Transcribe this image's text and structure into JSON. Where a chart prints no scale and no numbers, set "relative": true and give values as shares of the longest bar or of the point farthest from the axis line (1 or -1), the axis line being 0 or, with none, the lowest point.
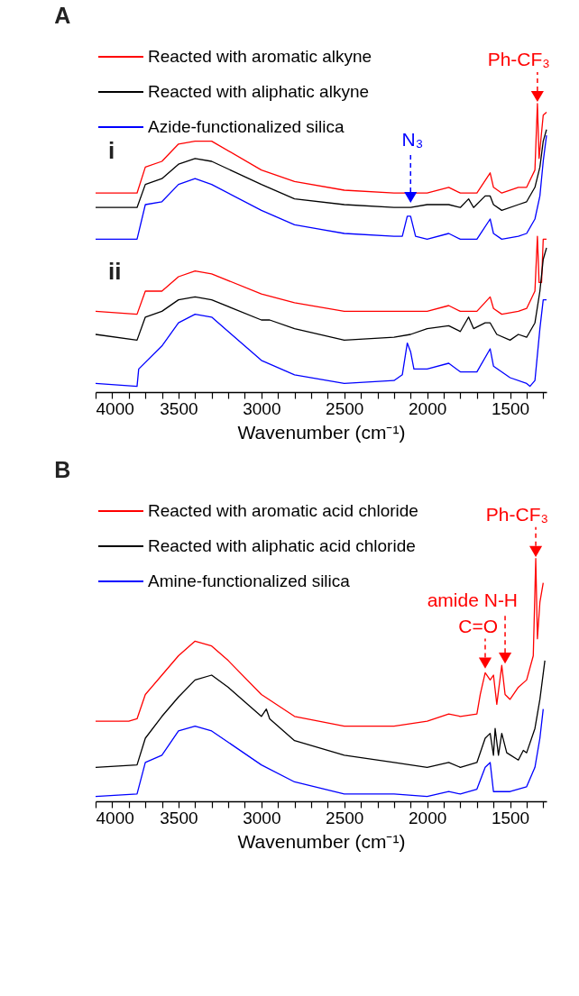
{
  "chart_data": [
    {
      "type": "line",
      "title": "A",
      "xlabel": "Wavenumber (cm⁻¹)",
      "relative": true,
      "legend": "top left",
      "xlim": [
        4000,
        1280
      ],
      "xticks": [
        4000,
        {
          "value": 3900,
          "label": null
        },
        {
          "value": 3800,
          "label": null
        },
        {
          "value": 3700,
          "label": null
        },
        {
          "value": 3600,
          "label": null
        },
        3500,
        {
          "value": 3400,
          "label": null
        },
        {
          "value": 3300,
          "label": null
        },
        {
          "value": 3200,
          "label": null
        },
        {
          "value": 3100,
          "label": null
        },
        3000,
        {
          "value": 2900,
          "label": null
        },
        {
          "value": 2800,
          "label": null
        },
        {
          "value": 2700,
          "label": null
        },
        {
          "value": 2600,
          "label": null
        },
        2500,
        {
          "value": 2400,
          "label": null
        },
        {
          "value": 2300,
          "label": null
        },
        {
          "value": 2200,
          "label": null
        },
        {
          "value": 2100,
          "label": null
        },
        2000,
        {
          "value": 1900,
          "label": null
        },
        {
          "value": 1800,
          "label": null
        },
        {
          "value": 1700,
          "label": null
        },
        {
          "value": 1600,
          "label": null
        },
        1500,
        {
          "value": 1400,
          "label": null
        },
        {
          "value": 1300,
          "label": null
        }
      ],
      "annotations": [
        "i",
        "ii",
        {
          "text": "Ph-CF₃",
          "x": 1335,
          "y": 1
        },
        {
          "text": "N₃",
          "x": 2100,
          "y": 0.65
        }
      ],
      "series": [
        {
          "name": "Reacted with aromatic alkyne",
          "color": "#ff0000",
          "x": [
            4000,
            3750,
            3700,
            3600,
            3500,
            3400,
            3300,
            3000,
            2800,
            2500,
            2200,
            2000,
            1870,
            1800,
            1700,
            1620,
            1600,
            1550,
            1450,
            1400,
            1350,
            1335,
            1325,
            1300,
            1280
          ],
          "values": [
            0.69,
            0.69,
            0.78,
            0.8,
            0.86,
            0.87,
            0.87,
            0.77,
            0.73,
            0.7,
            0.69,
            0.69,
            0.71,
            0.69,
            0.69,
            0.76,
            0.71,
            0.69,
            0.71,
            0.71,
            0.77,
            1,
            0.81,
            0.96,
            0.97
          ]
        },
        {
          "name": "Reacted with aliphatic alkyne",
          "color": "#000000",
          "x": [
            4000,
            3750,
            3700,
            3600,
            3500,
            3400,
            3300,
            3000,
            2800,
            2500,
            2200,
            2100,
            2000,
            1870,
            1800,
            1750,
            1720,
            1650,
            1620,
            1600,
            1550,
            1450,
            1400,
            1350,
            1320,
            1300,
            1280
          ],
          "values": [
            0.64,
            0.64,
            0.72,
            0.74,
            0.79,
            0.81,
            0.8,
            0.72,
            0.67,
            0.65,
            0.64,
            0.64,
            0.65,
            0.65,
            0.64,
            0.67,
            0.64,
            0.68,
            0.68,
            0.65,
            0.63,
            0.65,
            0.66,
            0.71,
            0.78,
            0.87,
            0.91
          ]
        },
        {
          "name": "Azide-functionalized silica",
          "color": "#0000ff",
          "x": [
            4000,
            3750,
            3700,
            3600,
            3500,
            3400,
            3300,
            3000,
            2800,
            2500,
            2200,
            2150,
            2120,
            2100,
            2070,
            2000,
            1870,
            1800,
            1700,
            1620,
            1600,
            1550,
            1450,
            1400,
            1350,
            1320,
            1300,
            1280
          ],
          "values": [
            0.53,
            0.53,
            0.65,
            0.66,
            0.72,
            0.74,
            0.72,
            0.63,
            0.58,
            0.55,
            0.54,
            0.54,
            0.61,
            0.61,
            0.54,
            0.53,
            0.55,
            0.53,
            0.53,
            0.6,
            0.55,
            0.53,
            0.54,
            0.55,
            0.6,
            0.68,
            0.8,
            0.89
          ]
        },
        {
          "color": "#ff0000",
          "x": [
            4000,
            3750,
            3700,
            3600,
            3500,
            3400,
            3300,
            3000,
            2800,
            2500,
            2200,
            2000,
            1870,
            1800,
            1700,
            1620,
            1600,
            1550,
            1450,
            1400,
            1350,
            1335,
            1325,
            1310,
            1300,
            1280
          ],
          "values": [
            0.28,
            0.27,
            0.35,
            0.35,
            0.4,
            0.42,
            0.41,
            0.34,
            0.31,
            0.28,
            0.28,
            0.28,
            0.3,
            0.28,
            0.28,
            0.33,
            0.29,
            0.27,
            0.28,
            0.29,
            0.35,
            0.54,
            0.38,
            0.38,
            0.53,
            0.53
          ]
        },
        {
          "color": "#000000",
          "x": [
            4000,
            3750,
            3700,
            3600,
            3500,
            3400,
            3300,
            3000,
            2950,
            2800,
            2500,
            2200,
            2100,
            2000,
            1870,
            1800,
            1750,
            1720,
            1650,
            1620,
            1580,
            1500,
            1450,
            1400,
            1350,
            1320,
            1300,
            1280
          ],
          "values": [
            0.2,
            0.18,
            0.26,
            0.28,
            0.32,
            0.33,
            0.32,
            0.25,
            0.25,
            0.22,
            0.18,
            0.19,
            0.2,
            0.22,
            0.23,
            0.21,
            0.26,
            0.22,
            0.24,
            0.24,
            0.2,
            0.18,
            0.2,
            0.19,
            0.24,
            0.35,
            0.46,
            0.5
          ]
        },
        {
          "color": "#0000ff",
          "x": [
            4000,
            3750,
            3740,
            3600,
            3500,
            3400,
            3300,
            3000,
            2800,
            2500,
            2200,
            2150,
            2120,
            2100,
            2080,
            2000,
            1870,
            1800,
            1700,
            1620,
            1600,
            1500,
            1400,
            1380,
            1350,
            1320,
            1300,
            1280
          ],
          "values": [
            0.03,
            0.02,
            0.08,
            0.16,
            0.24,
            0.27,
            0.26,
            0.11,
            0.06,
            0.03,
            0.04,
            0.06,
            0.17,
            0.14,
            0.08,
            0.08,
            0.1,
            0.07,
            0.07,
            0.15,
            0.09,
            0.05,
            0.03,
            0.02,
            0.04,
            0.22,
            0.32,
            0.32
          ]
        }
      ]
    },
    {
      "type": "line",
      "title": "B",
      "xlabel": "Wavenumber (cm⁻¹)",
      "relative": true,
      "legend": "top left",
      "xlim": [
        4000,
        1280
      ],
      "xticks": [
        4000,
        {
          "value": 3900,
          "label": null
        },
        {
          "value": 3800,
          "label": null
        },
        {
          "value": 3700,
          "label": null
        },
        {
          "value": 3600,
          "label": null
        },
        3500,
        {
          "value": 3400,
          "label": null
        },
        {
          "value": 3300,
          "label": null
        },
        {
          "value": 3200,
          "label": null
        },
        {
          "value": 3100,
          "label": null
        },
        3000,
        {
          "value": 2900,
          "label": null
        },
        {
          "value": 2800,
          "label": null
        },
        {
          "value": 2700,
          "label": null
        },
        {
          "value": 2600,
          "label": null
        },
        2500,
        {
          "value": 2400,
          "label": null
        },
        {
          "value": 2300,
          "label": null
        },
        {
          "value": 2200,
          "label": null
        },
        {
          "value": 2100,
          "label": null
        },
        2000,
        {
          "value": 1900,
          "label": null
        },
        {
          "value": 1800,
          "label": null
        },
        {
          "value": 1700,
          "label": null
        },
        {
          "value": 1600,
          "label": null
        },
        1500,
        {
          "value": 1400,
          "label": null
        },
        {
          "value": 1300,
          "label": null
        }
      ],
      "annotations": [
        {
          "text": "Ph-CF₃",
          "x": 1345,
          "y": 1
        },
        {
          "text": "amide N-H",
          "x": 1530,
          "y": 0.56
        },
        {
          "text": "C=O",
          "x": 1650,
          "y": 0.54
        }
      ],
      "series": [
        {
          "name": "Reacted with aromatic acid chloride",
          "color": "#ff0000",
          "x": [
            4000,
            3800,
            3750,
            3700,
            3600,
            3500,
            3400,
            3300,
            3200,
            3000,
            2800,
            2500,
            2200,
            2000,
            1870,
            1800,
            1700,
            1680,
            1650,
            1620,
            1600,
            1580,
            1550,
            1530,
            1500,
            1450,
            1400,
            1360,
            1345,
            1335,
            1320,
            1300
          ],
          "values": [
            0.33,
            0.33,
            0.34,
            0.44,
            0.52,
            0.6,
            0.66,
            0.64,
            0.58,
            0.44,
            0.35,
            0.31,
            0.31,
            0.33,
            0.36,
            0.35,
            0.36,
            0.44,
            0.53,
            0.5,
            0.52,
            0.4,
            0.56,
            0.44,
            0.42,
            0.47,
            0.5,
            0.6,
            1,
            0.67,
            0.82,
            0.9
          ]
        },
        {
          "name": "Reacted with aliphatic acid chloride",
          "color": "#000000",
          "x": [
            4000,
            3750,
            3700,
            3600,
            3500,
            3400,
            3300,
            3200,
            3000,
            2970,
            2950,
            2800,
            2500,
            2200,
            2000,
            1870,
            1800,
            1700,
            1650,
            1620,
            1600,
            1590,
            1570,
            1550,
            1520,
            1450,
            1420,
            1400,
            1350,
            1320,
            1290
          ],
          "values": [
            0.14,
            0.15,
            0.26,
            0.35,
            0.43,
            0.5,
            0.52,
            0.47,
            0.35,
            0.38,
            0.34,
            0.25,
            0.19,
            0.16,
            0.14,
            0.16,
            0.14,
            0.16,
            0.26,
            0.28,
            0.19,
            0.3,
            0.19,
            0.28,
            0.2,
            0.17,
            0.21,
            0.2,
            0.3,
            0.42,
            0.58
          ]
        },
        {
          "name": "Amine-functionalized silica",
          "color": "#0000ff",
          "x": [
            4000,
            3750,
            3700,
            3600,
            3500,
            3400,
            3300,
            3000,
            2800,
            2500,
            2200,
            2000,
            1870,
            1800,
            1700,
            1650,
            1620,
            1600,
            1550,
            1500,
            1400,
            1350,
            1320,
            1300
          ],
          "values": [
            0.02,
            0.03,
            0.16,
            0.19,
            0.29,
            0.31,
            0.29,
            0.15,
            0.08,
            0.03,
            0.03,
            0.02,
            0.04,
            0.03,
            0.05,
            0.14,
            0.16,
            0.04,
            0.04,
            0.04,
            0.06,
            0.14,
            0.26,
            0.38
          ]
        }
      ]
    }
  ]
}
